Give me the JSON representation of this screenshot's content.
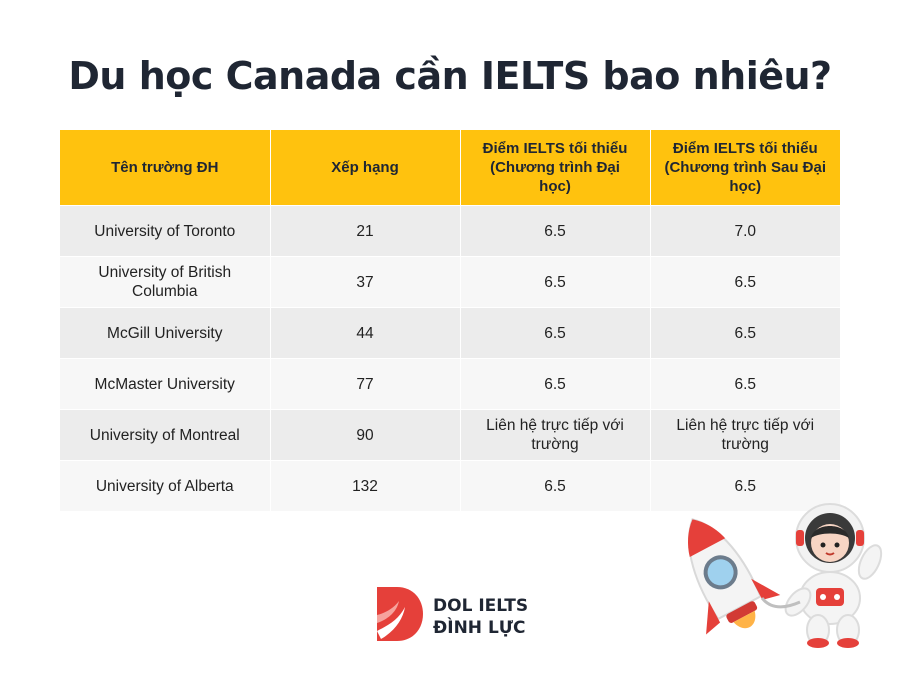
{
  "title": "Du học Canada cần IELTS bao nhiêu?",
  "table": {
    "headers": [
      "Tên trường ĐH",
      "Xếp hạng",
      "Điểm IELTS tối thiểu (Chương trình Đại học)",
      "Điểm IELTS tối thiểu (Chương trình Sau Đại học)"
    ],
    "rows": [
      [
        "University of Toronto",
        "21",
        "6.5",
        "7.0"
      ],
      [
        "University of British Columbia",
        "37",
        "6.5",
        "6.5"
      ],
      [
        "McGill University",
        "44",
        "6.5",
        "6.5"
      ],
      [
        "McMaster University",
        "77",
        "6.5",
        "6.5"
      ],
      [
        "University of Montreal",
        "90",
        "Liên hệ trực tiếp với trường",
        "Liên hệ trực tiếp với trường"
      ],
      [
        "University of Alberta",
        "132",
        "6.5",
        "6.5"
      ]
    ]
  },
  "logo": {
    "line1": "DOL IELTS",
    "line2": "ĐÌNH LỰC",
    "icon": "dol-logo-icon"
  },
  "illustration": {
    "icon": "astronaut-rocket-icon"
  },
  "colors": {
    "header": "#ffc20e",
    "row_odd": "#ececec",
    "row_even": "#f7f7f7",
    "brand_red": "#e5403a",
    "title": "#1f2633"
  }
}
